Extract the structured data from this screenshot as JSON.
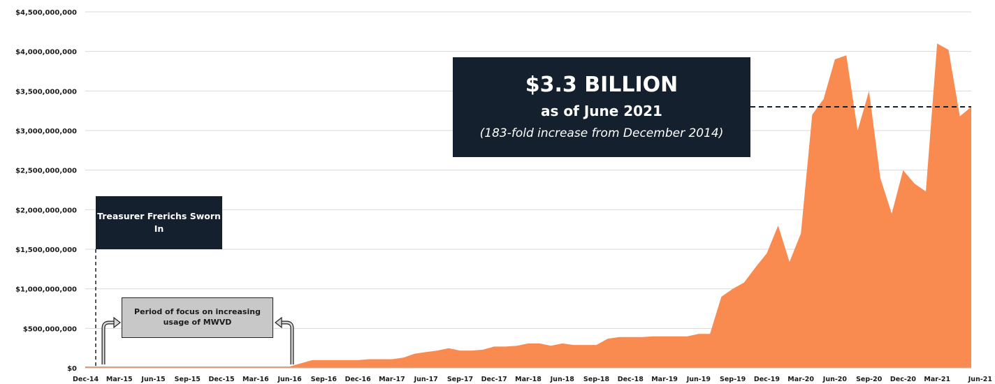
{
  "chart_data": {
    "type": "area",
    "y_ticks": [
      "$0",
      "$500,000,000",
      "$1,000,000,000",
      "$1,500,000,000",
      "$2,000,000,000",
      "$2,500,000,000",
      "$3,000,000,000",
      "$3,500,000,000",
      "$4,000,000,000",
      "$4,500,000,000"
    ],
    "ylim": [
      0,
      4500000000
    ],
    "x_ticks": [
      "Dec-14",
      "Mar-15",
      "Jun-15",
      "Sep-15",
      "Dec-15",
      "Mar-16",
      "Jun-16",
      "Sep-16",
      "Dec-16",
      "Mar-17",
      "Jun-17",
      "Sep-17",
      "Dec-17",
      "Mar-18",
      "Jun-18",
      "Sep-18",
      "Dec-18",
      "Mar-19",
      "Jun-19",
      "Sep-19",
      "Dec-19",
      "Mar-20",
      "Jun-20",
      "Sep-20",
      "Dec-20",
      "Mar-21",
      "Jun-21"
    ],
    "x_start": "Dec-14",
    "x_end": "Jun-21",
    "grid": true,
    "color": "#f98b50",
    "values": [
      18000000,
      18000000,
      18000000,
      18000000,
      18000000,
      18000000,
      18000000,
      18000000,
      18000000,
      18000000,
      18000000,
      18000000,
      18000000,
      18000000,
      18000000,
      18000000,
      18000000,
      18000000,
      18000000,
      60000000,
      100000000,
      100000000,
      100000000,
      100000000,
      100000000,
      110000000,
      110000000,
      110000000,
      130000000,
      180000000,
      200000000,
      220000000,
      250000000,
      220000000,
      220000000,
      230000000,
      270000000,
      270000000,
      280000000,
      310000000,
      310000000,
      280000000,
      310000000,
      290000000,
      290000000,
      290000000,
      370000000,
      390000000,
      390000000,
      390000000,
      400000000,
      400000000,
      400000000,
      400000000,
      430000000,
      430000000,
      900000000,
      1000000000,
      1080000000,
      1270000000,
      1450000000,
      1800000000,
      1340000000,
      1700000000,
      3200000000,
      3400000000,
      3900000000,
      3950000000,
      3000000000,
      3500000000,
      2400000000,
      1950000000,
      2500000000,
      2330000000,
      2230000000,
      4100000000,
      4020000000,
      3180000000,
      3300000000
    ],
    "annotations": {
      "headline": "$3.3 BILLION",
      "headline_sub": "as of June 2021",
      "headline_note": "(183-fold increase from December 2014)",
      "headline_level": 3300000000,
      "sworn_in": "Treasurer Frerichs Sworn In",
      "focus_period": "Period of focus on increasing usage of MWVD"
    }
  },
  "colors": {
    "area": "#f98b50",
    "callout_dark": "#14202d",
    "callout_gray": "#c8c8c8"
  }
}
